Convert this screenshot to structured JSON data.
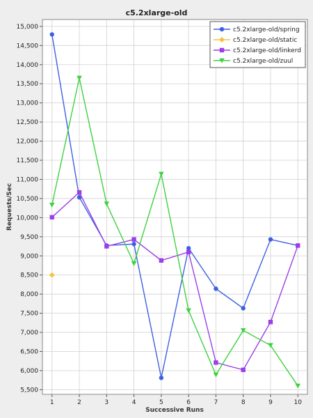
{
  "chart_data": {
    "type": "line",
    "title": "c5.2xlarge-old",
    "xlabel": "Successive Runs",
    "ylabel": "Requests/Sec",
    "x": [
      1,
      2,
      3,
      4,
      5,
      6,
      7,
      8,
      9,
      10
    ],
    "xlim": [
      0.65,
      10.35
    ],
    "ylim": [
      5380,
      15180
    ],
    "yticks": [
      5500,
      6000,
      6500,
      7000,
      7500,
      8000,
      8500,
      9000,
      9500,
      10000,
      10500,
      11000,
      11500,
      12000,
      12500,
      13000,
      13500,
      14000,
      14500,
      15000
    ],
    "ytick_labels": [
      "5,500",
      "6,000",
      "6,500",
      "7,000",
      "7,500",
      "8,000",
      "8,500",
      "9,000",
      "9,500",
      "10,000",
      "10,500",
      "11,000",
      "11,500",
      "12,000",
      "12,500",
      "13,000",
      "13,500",
      "14,000",
      "14,500",
      "15,000"
    ],
    "grid": true,
    "legend_position": "top-right",
    "series": [
      {
        "name": "c5.2xlarge-old/spring",
        "color": "#3d5fe3",
        "marker": "circle",
        "values": [
          14790,
          10530,
          9270,
          9310,
          5810,
          9200,
          8140,
          7630,
          9430,
          9270
        ]
      },
      {
        "name": "c5.2xlarge-old/static",
        "color": "#f5c242",
        "marker": "diamond",
        "values": [
          8500,
          null,
          null,
          null,
          null,
          null,
          null,
          null,
          null,
          null
        ]
      },
      {
        "name": "c5.2xlarge-old/linkerd",
        "color": "#9b3ee8",
        "marker": "square",
        "values": [
          10010,
          10660,
          9250,
          9430,
          8880,
          9100,
          6210,
          6020,
          7270,
          9270
        ]
      },
      {
        "name": "c5.2xlarge-old/zuul",
        "color": "#3ed13e",
        "marker": "triangle-down",
        "values": [
          10330,
          13650,
          10360,
          8800,
          11140,
          7570,
          5890,
          7050,
          6660,
          5600
        ]
      }
    ]
  }
}
